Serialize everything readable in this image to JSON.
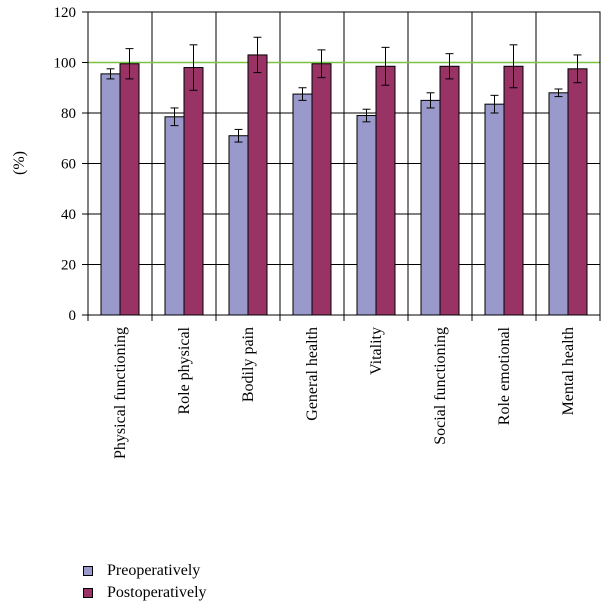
{
  "chart_data": {
    "type": "bar",
    "title": "",
    "xlabel": "",
    "ylabel": "(%)",
    "ylim": [
      0,
      120
    ],
    "yticks": [
      0,
      20,
      40,
      60,
      80,
      100,
      120
    ],
    "grid": true,
    "reference_line": {
      "value": 100,
      "color": "#7ac142"
    },
    "categories": [
      "Physical functioning",
      "Role physical",
      "Bodily pain",
      "General health",
      "Vitality",
      "Social functioning",
      "Role emotional",
      "Mental health"
    ],
    "series": [
      {
        "name": "Preoperatively",
        "color": "#9999cc",
        "values": [
          95.5,
          78.5,
          71,
          87.5,
          79,
          85,
          83.5,
          88
        ],
        "errors": [
          2,
          3.5,
          2.5,
          2.5,
          2.5,
          3,
          3.5,
          1.5
        ]
      },
      {
        "name": "Postoperatively",
        "color": "#993366",
        "values": [
          99.5,
          98,
          103,
          99.5,
          98.5,
          98.5,
          98.5,
          97.5
        ],
        "errors": [
          6,
          9,
          7,
          5.5,
          7.5,
          5,
          8.5,
          5.5
        ]
      }
    ],
    "legend_position": "bottom-left"
  }
}
